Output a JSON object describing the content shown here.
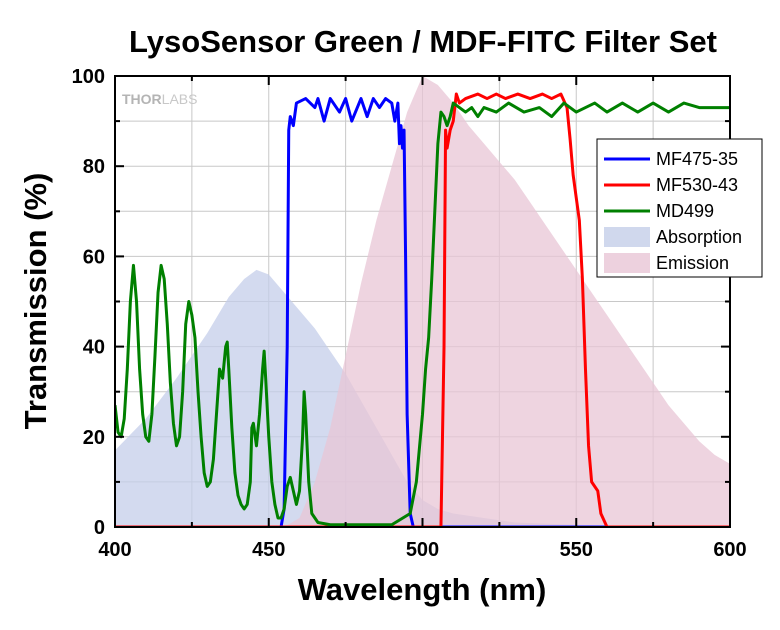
{
  "chart_data": {
    "type": "line",
    "title": "LysoSensor Green / MDF-FITC Filter Set",
    "xlabel": "Wavelength (nm)",
    "ylabel": "Transmission (%)",
    "xlim": [
      400,
      600
    ],
    "ylim": [
      0,
      100
    ],
    "xticks": [
      400,
      450,
      500,
      550,
      600
    ],
    "yticks": [
      0,
      20,
      40,
      60,
      80,
      100
    ],
    "grid": true,
    "legend_position": "top-right",
    "watermark": {
      "part1": "THOR",
      "part2": "LABS"
    },
    "series": [
      {
        "name": "MF475-35",
        "kind": "line",
        "color": "#0000ff",
        "points": [
          [
            400,
            0
          ],
          [
            454,
            0
          ],
          [
            455,
            4
          ],
          [
            456,
            40
          ],
          [
            456.5,
            88
          ],
          [
            457,
            91
          ],
          [
            458,
            89
          ],
          [
            459,
            94
          ],
          [
            462,
            95
          ],
          [
            465,
            93
          ],
          [
            466,
            95
          ],
          [
            468,
            90
          ],
          [
            470,
            95
          ],
          [
            473,
            92
          ],
          [
            475,
            95
          ],
          [
            477,
            90
          ],
          [
            480,
            95
          ],
          [
            482,
            91
          ],
          [
            484,
            95
          ],
          [
            486,
            93
          ],
          [
            488,
            95
          ],
          [
            490,
            94
          ],
          [
            491,
            90
          ],
          [
            492,
            94
          ],
          [
            492.5,
            85
          ],
          [
            493,
            89
          ],
          [
            493.5,
            84
          ],
          [
            494,
            88
          ],
          [
            494.5,
            60
          ],
          [
            495,
            25
          ],
          [
            496,
            3
          ],
          [
            497,
            0
          ],
          [
            600,
            0
          ]
        ]
      },
      {
        "name": "MF530-43",
        "kind": "line",
        "color": "#ff0000",
        "points": [
          [
            400,
            0
          ],
          [
            506,
            0
          ],
          [
            507,
            40
          ],
          [
            507.5,
            88
          ],
          [
            508,
            84
          ],
          [
            509,
            88
          ],
          [
            510,
            90
          ],
          [
            511,
            96
          ],
          [
            512,
            94
          ],
          [
            514,
            95
          ],
          [
            518,
            96
          ],
          [
            521,
            95
          ],
          [
            524,
            96
          ],
          [
            527,
            95
          ],
          [
            531,
            96
          ],
          [
            535,
            95
          ],
          [
            539,
            96
          ],
          [
            542,
            95
          ],
          [
            545,
            96
          ],
          [
            547,
            93
          ],
          [
            548,
            86
          ],
          [
            549,
            78
          ],
          [
            550,
            73
          ],
          [
            551,
            68
          ],
          [
            552,
            55
          ],
          [
            553,
            35
          ],
          [
            554,
            18
          ],
          [
            555,
            10
          ],
          [
            557,
            8
          ],
          [
            558,
            3
          ],
          [
            560,
            0
          ],
          [
            600,
            0
          ]
        ]
      },
      {
        "name": "MD499",
        "kind": "line",
        "color": "#008000",
        "points": [
          [
            400,
            27
          ],
          [
            401,
            21
          ],
          [
            402,
            20
          ],
          [
            403,
            24
          ],
          [
            404,
            35
          ],
          [
            405,
            50
          ],
          [
            406,
            58
          ],
          [
            407,
            50
          ],
          [
            408,
            35
          ],
          [
            409,
            25
          ],
          [
            410,
            20
          ],
          [
            411,
            19
          ],
          [
            412,
            25
          ],
          [
            413,
            38
          ],
          [
            414,
            52
          ],
          [
            415,
            58
          ],
          [
            416,
            55
          ],
          [
            417,
            45
          ],
          [
            418,
            32
          ],
          [
            419,
            23
          ],
          [
            420,
            18
          ],
          [
            421,
            20
          ],
          [
            422,
            30
          ],
          [
            423,
            45
          ],
          [
            424,
            50
          ],
          [
            425,
            47
          ],
          [
            426,
            42
          ],
          [
            427,
            30
          ],
          [
            428,
            20
          ],
          [
            429,
            12
          ],
          [
            430,
            9
          ],
          [
            431,
            10
          ],
          [
            432,
            15
          ],
          [
            433,
            25
          ],
          [
            434,
            35
          ],
          [
            435,
            33
          ],
          [
            436,
            40
          ],
          [
            436.5,
            41
          ],
          [
            437,
            35
          ],
          [
            438,
            22
          ],
          [
            439,
            12
          ],
          [
            440,
            7
          ],
          [
            441,
            5
          ],
          [
            442,
            4
          ],
          [
            443,
            5
          ],
          [
            444,
            10
          ],
          [
            444.5,
            22
          ],
          [
            445,
            23
          ],
          [
            446,
            18
          ],
          [
            447,
            25
          ],
          [
            448,
            35
          ],
          [
            448.5,
            39
          ],
          [
            449,
            33
          ],
          [
            450,
            20
          ],
          [
            451,
            10
          ],
          [
            452,
            5
          ],
          [
            453,
            2
          ],
          [
            454,
            2
          ],
          [
            455,
            4
          ],
          [
            456,
            9
          ],
          [
            457,
            11
          ],
          [
            458,
            8
          ],
          [
            459,
            5
          ],
          [
            460,
            8
          ],
          [
            461,
            20
          ],
          [
            461.5,
            30
          ],
          [
            462,
            25
          ],
          [
            463,
            10
          ],
          [
            464,
            3
          ],
          [
            466,
            1
          ],
          [
            470,
            0.5
          ],
          [
            490,
            0.5
          ],
          [
            496,
            3
          ],
          [
            498,
            10
          ],
          [
            500,
            25
          ],
          [
            501,
            35
          ],
          [
            502,
            42
          ],
          [
            503,
            55
          ],
          [
            504,
            70
          ],
          [
            505,
            85
          ],
          [
            506,
            92
          ],
          [
            507,
            91
          ],
          [
            508,
            89
          ],
          [
            509,
            91
          ],
          [
            510,
            94
          ],
          [
            512,
            93
          ],
          [
            514,
            92
          ],
          [
            516,
            93
          ],
          [
            518,
            91
          ],
          [
            520,
            93
          ],
          [
            524,
            92
          ],
          [
            528,
            94
          ],
          [
            533,
            92
          ],
          [
            538,
            93
          ],
          [
            542,
            91
          ],
          [
            546,
            94
          ],
          [
            550,
            92
          ],
          [
            556,
            94
          ],
          [
            560,
            92
          ],
          [
            565,
            94
          ],
          [
            570,
            92
          ],
          [
            575,
            94
          ],
          [
            580,
            92
          ],
          [
            585,
            94
          ],
          [
            590,
            93
          ],
          [
            595,
            93
          ],
          [
            600,
            93
          ]
        ]
      },
      {
        "name": "Absorption",
        "kind": "area",
        "color": "#c4cee9",
        "points": [
          [
            400,
            17
          ],
          [
            410,
            24
          ],
          [
            420,
            33
          ],
          [
            430,
            43
          ],
          [
            437,
            51
          ],
          [
            442,
            55
          ],
          [
            446,
            57
          ],
          [
            450,
            56
          ],
          [
            455,
            52
          ],
          [
            460,
            48
          ],
          [
            465,
            44
          ],
          [
            470,
            39
          ],
          [
            475,
            34
          ],
          [
            480,
            28
          ],
          [
            485,
            22
          ],
          [
            490,
            16
          ],
          [
            495,
            10
          ],
          [
            500,
            6
          ],
          [
            505,
            4
          ],
          [
            510,
            3
          ],
          [
            520,
            2
          ],
          [
            530,
            1
          ],
          [
            545,
            0.6
          ],
          [
            560,
            0.3
          ],
          [
            600,
            0
          ]
        ]
      },
      {
        "name": "Emission",
        "kind": "area",
        "color": "#e8c6d6",
        "points": [
          [
            455,
            0
          ],
          [
            460,
            2
          ],
          [
            465,
            10
          ],
          [
            470,
            22
          ],
          [
            475,
            38
          ],
          [
            480,
            54
          ],
          [
            485,
            68
          ],
          [
            490,
            80
          ],
          [
            495,
            92
          ],
          [
            500,
            100
          ],
          [
            505,
            98
          ],
          [
            510,
            94
          ],
          [
            515,
            89
          ],
          [
            520,
            85
          ],
          [
            525,
            81
          ],
          [
            530,
            77
          ],
          [
            535,
            72
          ],
          [
            540,
            67
          ],
          [
            545,
            62
          ],
          [
            550,
            57
          ],
          [
            555,
            52
          ],
          [
            560,
            47
          ],
          [
            565,
            42
          ],
          [
            570,
            37
          ],
          [
            575,
            32
          ],
          [
            580,
            27
          ],
          [
            585,
            23
          ],
          [
            590,
            19
          ],
          [
            595,
            16
          ],
          [
            600,
            14
          ]
        ]
      }
    ]
  }
}
